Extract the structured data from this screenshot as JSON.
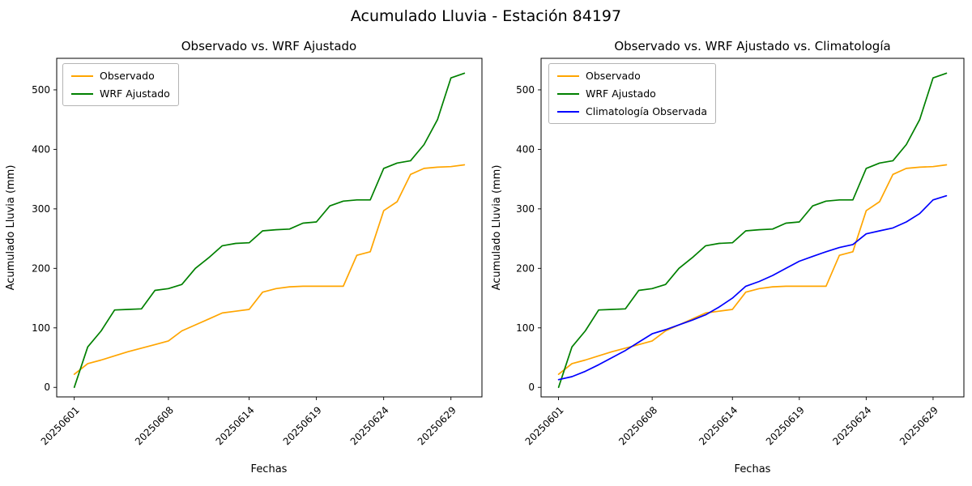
{
  "figure_title": "Acumulado Lluvia - Estación 84197",
  "chart_data": [
    {
      "type": "line",
      "title": "Observado vs. WRF Ajustado",
      "xlabel": "Fechas",
      "ylabel": "Acumulado Lluvia (mm)",
      "legend_position": "upper left",
      "grid": false,
      "categories": [
        "20250601",
        "20250602",
        "20250603",
        "20250604",
        "20250605",
        "20250606",
        "20250607",
        "20250608",
        "20250609",
        "20250610",
        "20250611",
        "20250612",
        "20250613",
        "20250614",
        "20250615",
        "20250616",
        "20250617",
        "20250618",
        "20250619",
        "20250620",
        "20250621",
        "20250622",
        "20250623",
        "20250624",
        "20250625",
        "20250626",
        "20250627",
        "20250628",
        "20250629",
        "20250630"
      ],
      "xtick_labels": [
        "20250601",
        "20250608",
        "20250614",
        "20250619",
        "20250624",
        "20250629"
      ],
      "xtick_indices": [
        0,
        7,
        13,
        18,
        23,
        28
      ],
      "yticks": [
        0,
        100,
        200,
        300,
        400,
        500
      ],
      "ylim": [
        -16,
        553
      ],
      "series": [
        {
          "name": "Observado",
          "color": "#FFA500",
          "values": [
            22,
            40,
            46,
            53,
            60,
            66,
            72,
            78,
            95,
            105,
            115,
            125,
            128,
            131,
            160,
            166,
            169,
            170,
            170,
            170,
            170,
            222,
            228,
            297,
            312,
            358,
            368,
            370,
            371,
            374
          ]
        },
        {
          "name": "WRF Ajustado",
          "color": "#008000",
          "values": [
            0,
            68,
            95,
            130,
            131,
            132,
            163,
            166,
            173,
            200,
            218,
            238,
            242,
            243,
            263,
            265,
            266,
            276,
            278,
            305,
            313,
            315,
            315,
            368,
            377,
            381,
            408,
            450,
            520,
            528
          ]
        }
      ]
    },
    {
      "type": "line",
      "title": "Observado vs. WRF Ajustado vs. Climatología",
      "xlabel": "Fechas",
      "ylabel": "Acumulado Lluvia (mm)",
      "legend_position": "upper left",
      "grid": false,
      "categories": [
        "20250601",
        "20250602",
        "20250603",
        "20250604",
        "20250605",
        "20250606",
        "20250607",
        "20250608",
        "20250609",
        "20250610",
        "20250611",
        "20250612",
        "20250613",
        "20250614",
        "20250615",
        "20250616",
        "20250617",
        "20250618",
        "20250619",
        "20250620",
        "20250621",
        "20250622",
        "20250623",
        "20250624",
        "20250625",
        "20250626",
        "20250627",
        "20250628",
        "20250629",
        "20250630"
      ],
      "xtick_labels": [
        "20250601",
        "20250608",
        "20250614",
        "20250619",
        "20250624",
        "20250629"
      ],
      "xtick_indices": [
        0,
        7,
        13,
        18,
        23,
        28
      ],
      "yticks": [
        0,
        100,
        200,
        300,
        400,
        500
      ],
      "ylim": [
        -16,
        553
      ],
      "series": [
        {
          "name": "Observado",
          "color": "#FFA500",
          "values": [
            22,
            40,
            46,
            53,
            60,
            66,
            72,
            78,
            95,
            105,
            115,
            125,
            128,
            131,
            160,
            166,
            169,
            170,
            170,
            170,
            170,
            222,
            228,
            297,
            312,
            358,
            368,
            370,
            371,
            374
          ]
        },
        {
          "name": "WRF Ajustado",
          "color": "#008000",
          "values": [
            0,
            68,
            95,
            130,
            131,
            132,
            163,
            166,
            173,
            200,
            218,
            238,
            242,
            243,
            263,
            265,
            266,
            276,
            278,
            305,
            313,
            315,
            315,
            368,
            377,
            381,
            408,
            450,
            520,
            528
          ]
        },
        {
          "name": "Climatología Observada",
          "color": "#0000FF",
          "values": [
            13,
            18,
            27,
            38,
            50,
            62,
            76,
            90,
            97,
            105,
            113,
            122,
            135,
            150,
            170,
            178,
            188,
            200,
            212,
            220,
            228,
            235,
            240,
            258,
            263,
            268,
            278,
            292,
            315,
            322
          ]
        }
      ]
    }
  ]
}
